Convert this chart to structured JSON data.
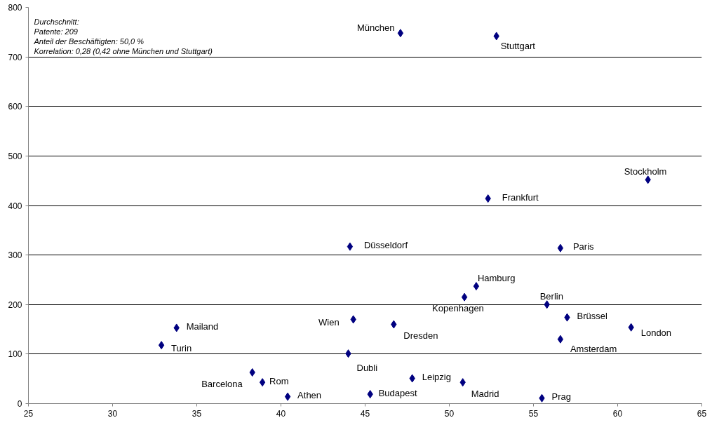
{
  "chart_data": {
    "type": "scatter",
    "marker": "diamond",
    "grid": "y",
    "xlim": [
      25,
      65
    ],
    "xticks": [
      25,
      30,
      35,
      40,
      45,
      50,
      55,
      60,
      65
    ],
    "ylim": [
      0,
      800
    ],
    "yticks": [
      0,
      100,
      200,
      300,
      400,
      500,
      600,
      700,
      800
    ],
    "series": [
      {
        "color": "#000080",
        "x": [
          47.1,
          52.8,
          61.8,
          52.3,
          44.1,
          56.6,
          51.6,
          50.9,
          55.8,
          57.0,
          60.8,
          56.6,
          33.8,
          32.9,
          44.3,
          46.7,
          44.0,
          38.9,
          38.3,
          40.4,
          45.3,
          47.8,
          50.8,
          55.5
        ],
        "values": [
          748,
          742,
          452,
          414,
          317,
          314,
          237,
          215,
          200,
          174,
          154,
          130,
          153,
          118,
          170,
          160,
          101,
          43,
          63,
          14,
          19,
          51,
          43,
          11
        ]
      }
    ],
    "annotations": [
      "Durchschnitt:",
      "Patente: 209",
      "Anteil der Beschäftigten: 50,0 %",
      "Korrelation: 0,28 (0,42 ohne München und Stuttgart)",
      {
        "text": "München",
        "x": 47.1,
        "y": 748
      },
      {
        "text": "Stuttgart",
        "x": 52.8,
        "y": 742
      },
      {
        "text": "Stockholm",
        "x": 61.8,
        "y": 452
      },
      {
        "text": "Frankfurt",
        "x": 52.3,
        "y": 414
      },
      {
        "text": "Düsseldorf",
        "x": 44.1,
        "y": 317
      },
      {
        "text": "Paris",
        "x": 56.6,
        "y": 314
      },
      {
        "text": "Hamburg",
        "x": 51.6,
        "y": 237
      },
      {
        "text": "Kopenhagen",
        "x": 50.9,
        "y": 215
      },
      {
        "text": "Berlin",
        "x": 55.8,
        "y": 200
      },
      {
        "text": "Brüssel",
        "x": 57.0,
        "y": 174
      },
      {
        "text": "London",
        "x": 60.8,
        "y": 154
      },
      {
        "text": "Amsterdam",
        "x": 56.6,
        "y": 130
      },
      {
        "text": "Mailand",
        "x": 33.8,
        "y": 153
      },
      {
        "text": "Turin",
        "x": 32.9,
        "y": 118
      },
      {
        "text": "Wien",
        "x": 44.3,
        "y": 170
      },
      {
        "text": "Dresden",
        "x": 46.7,
        "y": 160
      },
      {
        "text": "Dubli",
        "x": 44.0,
        "y": 101
      },
      {
        "text": "Rom",
        "x": 38.9,
        "y": 43
      },
      {
        "text": "Barcelona",
        "x": 38.3,
        "y": 63
      },
      {
        "text": "Athen",
        "x": 40.4,
        "y": 14
      },
      {
        "text": "Budapest",
        "x": 45.3,
        "y": 19
      },
      {
        "text": "Leipzig",
        "x": 47.8,
        "y": 51
      },
      {
        "text": "Madrid",
        "x": 50.8,
        "y": 43
      },
      {
        "text": "Prag",
        "x": 55.5,
        "y": 11
      }
    ]
  }
}
